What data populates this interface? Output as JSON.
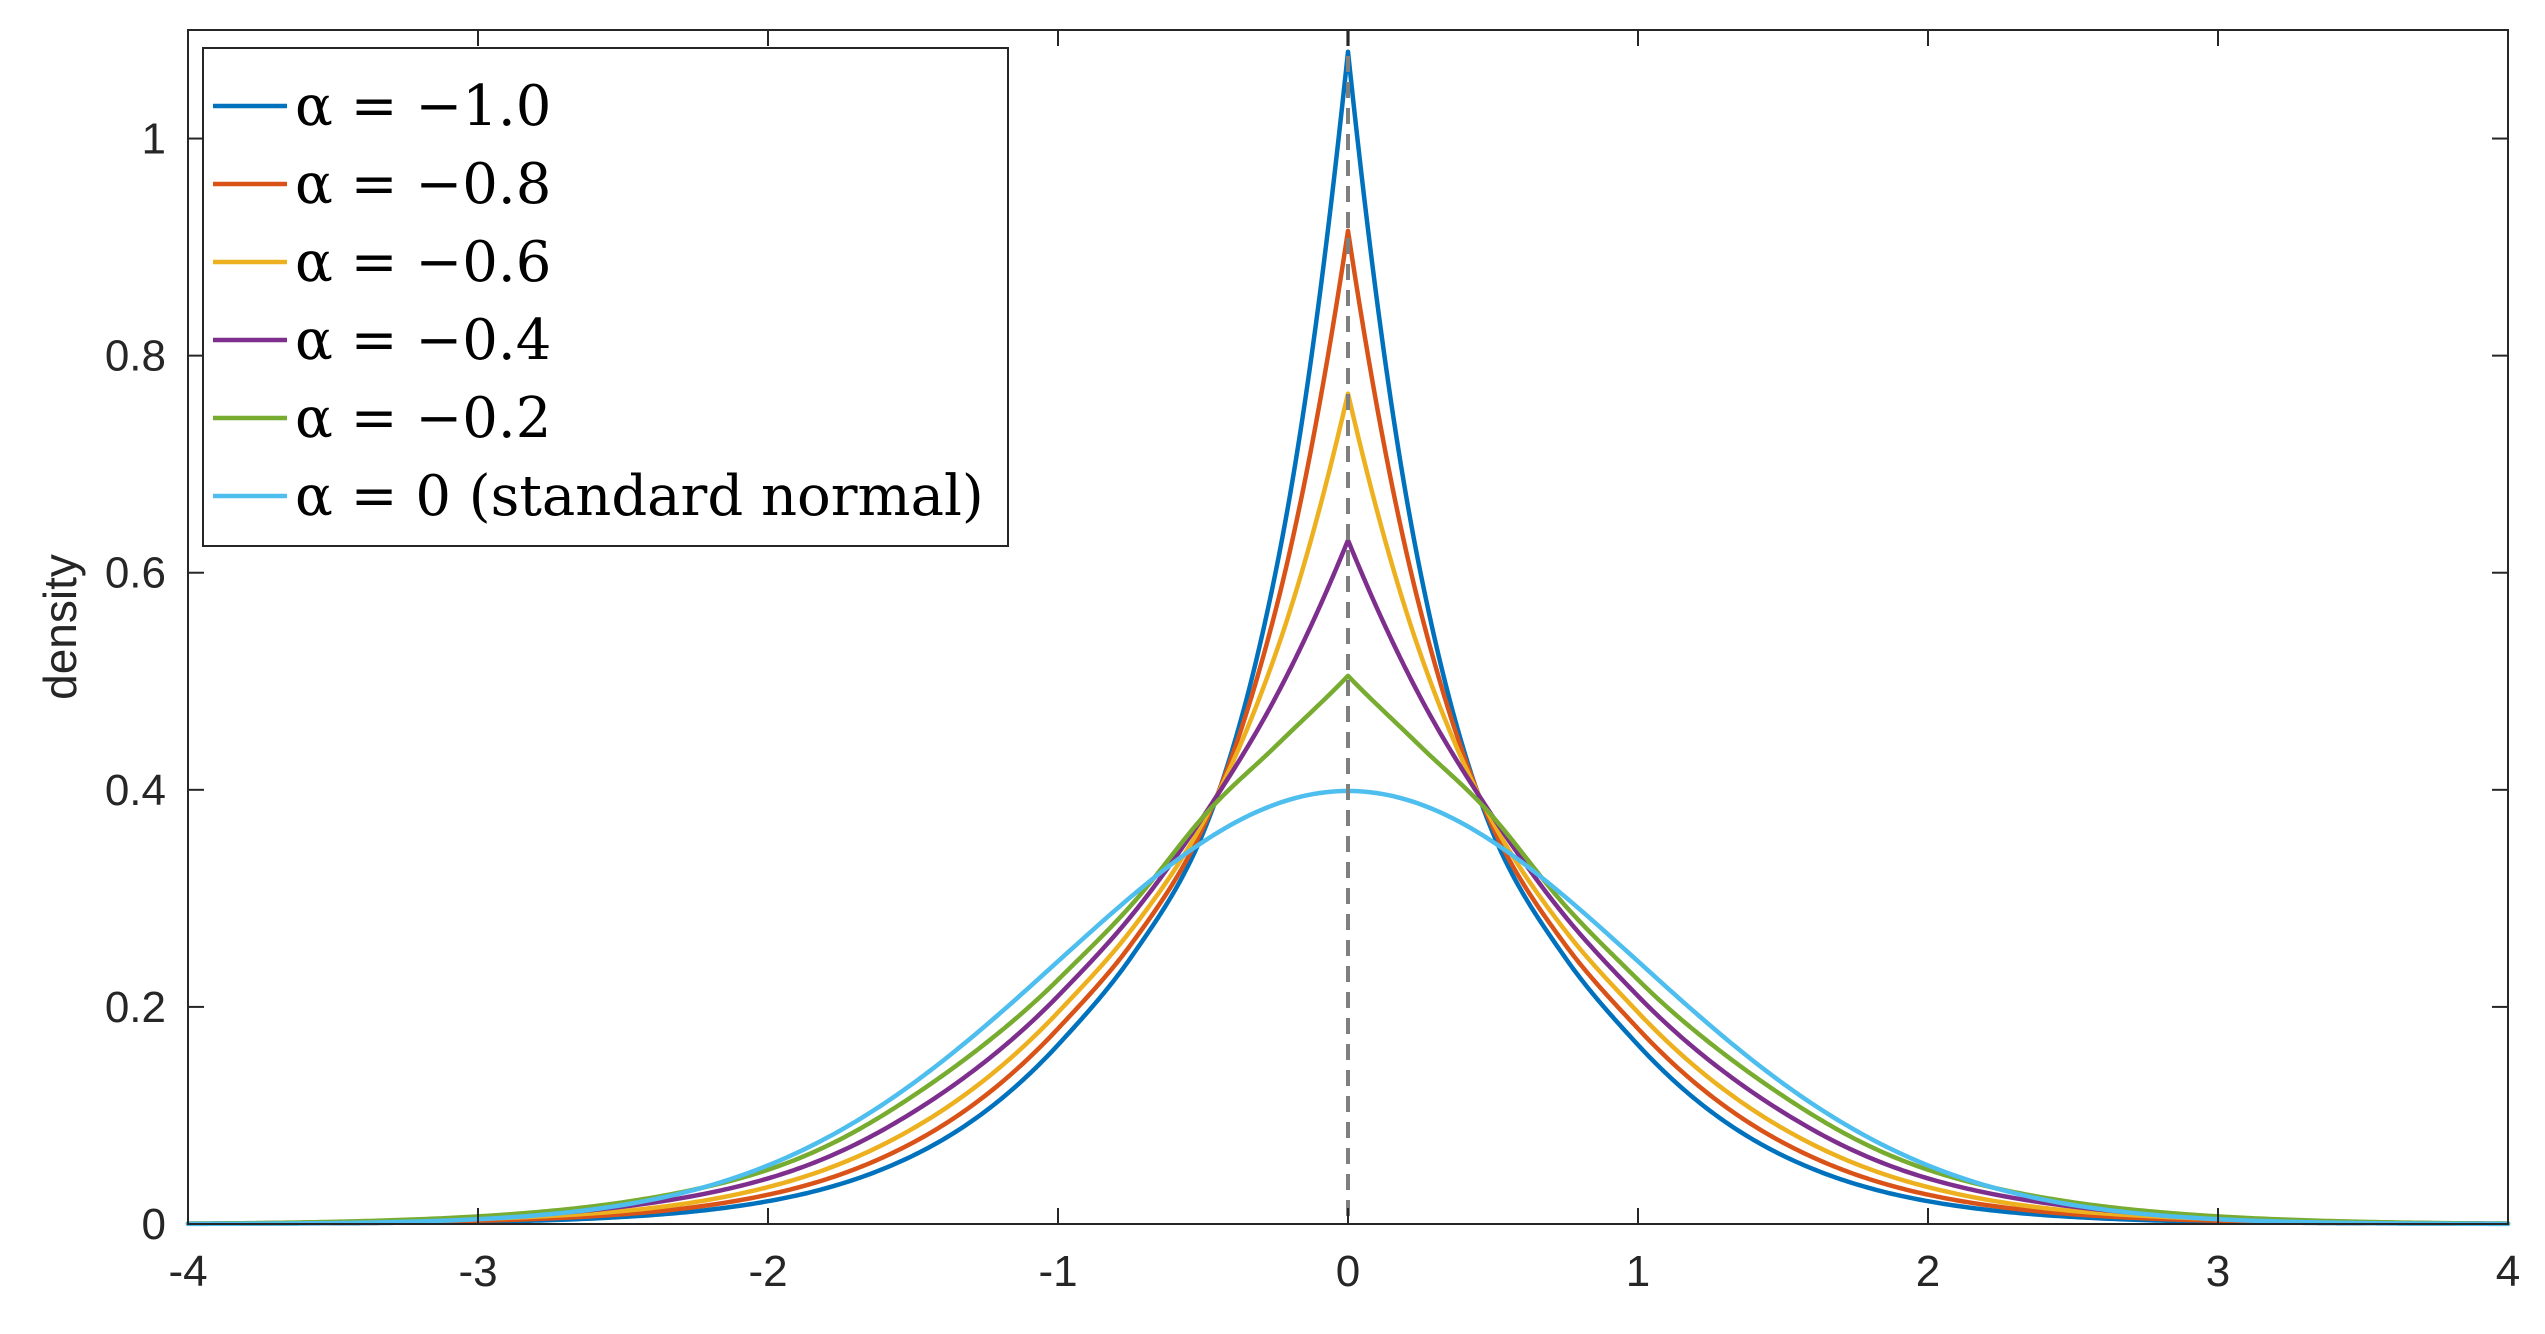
{
  "chart_data": {
    "type": "line",
    "title": "",
    "xlabel": "",
    "ylabel": "density",
    "xlim": [
      -4,
      4
    ],
    "ylim": [
      0,
      1.1
    ],
    "x_ticks": [
      "-4",
      "-3",
      "-2",
      "-1",
      "0",
      "1",
      "2",
      "3",
      "4"
    ],
    "y_ticks": [
      "0",
      "0.2",
      "0.4",
      "0.6",
      "0.8",
      "1"
    ],
    "grid": false,
    "box": true,
    "legend_position": "top-left",
    "reference_line": {
      "x": 0,
      "style": "dashed",
      "color": "#7f7f7f"
    },
    "series": [
      {
        "name": "α = −1.0",
        "color": "#0072BD",
        "peak": 1.08,
        "x": [
          -4,
          -3.5,
          -3,
          -2.5,
          -2,
          -1.5,
          -1,
          -0.75,
          -0.5,
          -0.25,
          0,
          0.25,
          0.5,
          0.75,
          1,
          1.5,
          2,
          2.5,
          3,
          3.5,
          4
        ],
        "y": [
          0.0002,
          0.0007,
          0.002,
          0.0065,
          0.021,
          0.063,
          0.165,
          0.245,
          0.36,
          0.6,
          1.08,
          0.6,
          0.36,
          0.245,
          0.165,
          0.063,
          0.021,
          0.0065,
          0.002,
          0.0007,
          0.0002
        ]
      },
      {
        "name": "α = −0.8",
        "color": "#D95319",
        "peak": 0.915,
        "x": [
          -4,
          -3.5,
          -3,
          -2.5,
          -2,
          -1.5,
          -1,
          -0.75,
          -0.5,
          -0.25,
          0,
          0.25,
          0.5,
          0.75,
          1,
          1.5,
          2,
          2.5,
          3,
          3.5,
          4
        ],
        "y": [
          0.0002,
          0.001,
          0.003,
          0.009,
          0.027,
          0.075,
          0.18,
          0.257,
          0.365,
          0.565,
          0.915,
          0.565,
          0.365,
          0.257,
          0.18,
          0.075,
          0.027,
          0.009,
          0.003,
          0.001,
          0.0002
        ]
      },
      {
        "name": "α = −0.6",
        "color": "#EDB120",
        "peak": 0.765,
        "x": [
          -4,
          -3.5,
          -3,
          -2.5,
          -2,
          -1.5,
          -1,
          -0.75,
          -0.5,
          -0.25,
          0,
          0.25,
          0.5,
          0.75,
          1,
          1.5,
          2,
          2.5,
          3,
          3.5,
          4
        ],
        "y": [
          0.0002,
          0.0012,
          0.0045,
          0.012,
          0.034,
          0.088,
          0.195,
          0.27,
          0.37,
          0.525,
          0.765,
          0.525,
          0.37,
          0.27,
          0.195,
          0.088,
          0.034,
          0.012,
          0.0045,
          0.0012,
          0.0002
        ]
      },
      {
        "name": "α = −0.4",
        "color": "#7E2F8E",
        "peak": 0.63,
        "x": [
          -4,
          -3.5,
          -3,
          -2.5,
          -2,
          -1.5,
          -1,
          -0.75,
          -0.5,
          -0.25,
          0,
          0.25,
          0.5,
          0.75,
          1,
          1.5,
          2,
          2.5,
          3,
          3.5,
          4
        ],
        "y": [
          0.0003,
          0.0017,
          0.0055,
          0.016,
          0.042,
          0.103,
          0.21,
          0.283,
          0.375,
          0.485,
          0.63,
          0.485,
          0.375,
          0.283,
          0.21,
          0.103,
          0.042,
          0.016,
          0.0055,
          0.0017,
          0.0003
        ]
      },
      {
        "name": "α = −0.2",
        "color": "#77AC30",
        "peak": 0.505,
        "x": [
          -4,
          -3.5,
          -3,
          -2.5,
          -2,
          -1.5,
          -1,
          -0.75,
          -0.5,
          -0.25,
          0,
          0.25,
          0.5,
          0.75,
          1,
          1.5,
          2,
          2.5,
          3,
          3.5,
          4
        ],
        "y": [
          0.0004,
          0.002,
          0.007,
          0.02,
          0.05,
          0.118,
          0.225,
          0.293,
          0.375,
          0.44,
          0.505,
          0.44,
          0.375,
          0.293,
          0.225,
          0.118,
          0.05,
          0.02,
          0.007,
          0.002,
          0.0004
        ]
      },
      {
        "name": "α = 0 (standard normal)",
        "color": "#4DBEEE",
        "peak": 0.399,
        "x": [
          -4,
          -3.5,
          -3,
          -2.5,
          -2,
          -1.75,
          -1.5,
          -1.25,
          -1,
          -0.75,
          -0.5,
          -0.25,
          0,
          0.25,
          0.5,
          0.75,
          1,
          1.25,
          1.5,
          1.75,
          2,
          2.5,
          3,
          3.5,
          4
        ],
        "y": [
          0.0001,
          0.0009,
          0.0044,
          0.0175,
          0.054,
          0.086,
          0.1295,
          0.1826,
          0.242,
          0.3011,
          0.3521,
          0.3867,
          0.3989,
          0.3867,
          0.3521,
          0.3011,
          0.242,
          0.1826,
          0.1295,
          0.086,
          0.054,
          0.0175,
          0.0044,
          0.0009,
          0.0001
        ]
      }
    ]
  }
}
